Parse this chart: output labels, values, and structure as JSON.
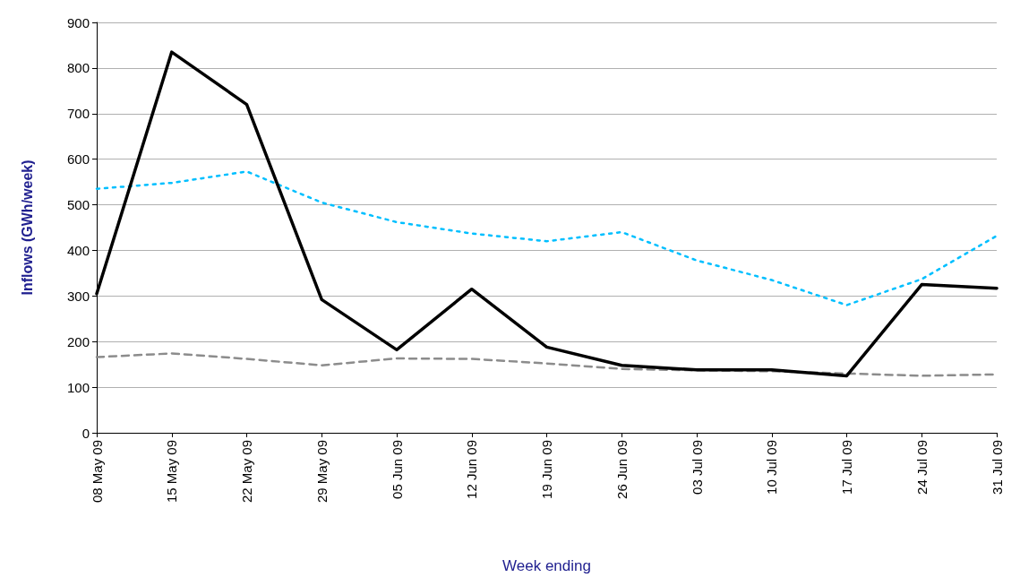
{
  "chart_data": {
    "type": "line",
    "xlabel": "Week ending",
    "ylabel": "Inflows (GWh/week)",
    "categories": [
      "08 May 09",
      "15 May 09",
      "22 May 09",
      "29 May 09",
      "05 Jun 09",
      "12 Jun 09",
      "19 Jun 09",
      "26 Jun 09",
      "03 Jul 09",
      "10 Jul 09",
      "17 Jul 09",
      "24 Jul 09",
      "31 Jul 09"
    ],
    "series": [
      {
        "color": "#8c8c8c",
        "line_style": "dashed",
        "values": [
          166,
          174,
          162,
          148,
          163,
          162,
          152,
          140,
          137,
          135,
          130,
          125,
          128
        ]
      },
      {
        "color": "#00bfff",
        "line_style": "dotted",
        "values": [
          535,
          548,
          573,
          505,
          462,
          437,
          420,
          440,
          378,
          335,
          280,
          337,
          432
        ]
      },
      {
        "color": "#000000",
        "line_style": "solid",
        "values": [
          305,
          835,
          720,
          292,
          182,
          315,
          188,
          148,
          138,
          138,
          125,
          325,
          317
        ]
      }
    ],
    "ylim": [
      0,
      900
    ],
    "yticks": [
      0,
      100,
      200,
      300,
      400,
      500,
      600,
      700,
      800,
      900
    ],
    "grid": "y",
    "marker": "none"
  }
}
